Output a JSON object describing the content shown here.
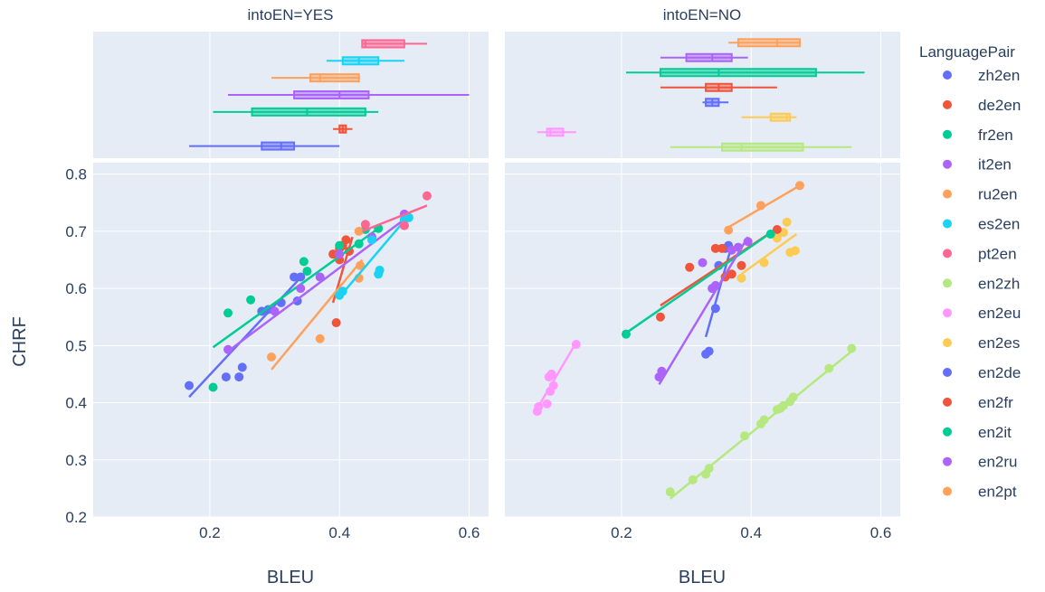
{
  "chart_data": {
    "type": "scatter",
    "facets": [
      "intoEN=YES",
      "intoEN=NO"
    ],
    "xlabel": "BLEU",
    "ylabel": "CHRF",
    "xlim": [
      0.02,
      0.63
    ],
    "ylim": [
      0.2,
      0.82
    ],
    "x_ticks": [
      "0.2",
      "0.4",
      "0.6"
    ],
    "y_ticks": [
      "0.2",
      "0.3",
      "0.4",
      "0.5",
      "0.6",
      "0.7",
      "0.8"
    ],
    "marginal": "box",
    "grid": true,
    "legend_title": "LanguagePair",
    "legend_position": "right",
    "series": [
      {
        "name": "zh2en",
        "color": "#636efa",
        "facet": 0,
        "points": [
          [
            0.168,
            0.43
          ],
          [
            0.225,
            0.445
          ],
          [
            0.245,
            0.445
          ],
          [
            0.25,
            0.462
          ],
          [
            0.28,
            0.56
          ],
          [
            0.29,
            0.563
          ],
          [
            0.31,
            0.575
          ],
          [
            0.33,
            0.62
          ],
          [
            0.335,
            0.578
          ],
          [
            0.34,
            0.62
          ]
        ],
        "trend": [
          [
            0.168,
            0.41
          ],
          [
            0.345,
            0.625
          ]
        ],
        "box": {
          "min": 0.168,
          "q1": 0.28,
          "median": 0.31,
          "q3": 0.33,
          "max": 0.4
        }
      },
      {
        "name": "de2en",
        "color": "#ef553b",
        "facet": 0,
        "points": [
          [
            0.39,
            0.66
          ],
          [
            0.395,
            0.54
          ],
          [
            0.4,
            0.67
          ],
          [
            0.405,
            0.675
          ],
          [
            0.41,
            0.685
          ],
          [
            0.415,
            0.665
          ],
          [
            0.4,
            0.65
          ]
        ],
        "trend": [
          [
            0.39,
            0.575
          ],
          [
            0.42,
            0.69
          ]
        ],
        "box": {
          "min": 0.39,
          "q1": 0.4,
          "median": 0.405,
          "q3": 0.41,
          "max": 0.42
        }
      },
      {
        "name": "fr2en",
        "color": "#00cc96",
        "facet": 0,
        "points": [
          [
            0.205,
            0.427
          ],
          [
            0.228,
            0.557
          ],
          [
            0.263,
            0.58
          ],
          [
            0.345,
            0.647
          ],
          [
            0.35,
            0.63
          ],
          [
            0.4,
            0.675
          ],
          [
            0.43,
            0.678
          ],
          [
            0.44,
            0.703
          ],
          [
            0.46,
            0.705
          ]
        ],
        "trend": [
          [
            0.205,
            0.497
          ],
          [
            0.46,
            0.705
          ]
        ],
        "box": {
          "min": 0.205,
          "q1": 0.265,
          "median": 0.35,
          "q3": 0.44,
          "max": 0.46
        }
      },
      {
        "name": "it2en",
        "color": "#ab63fa",
        "facet": 0,
        "points": [
          [
            0.228,
            0.493
          ],
          [
            0.3,
            0.56
          ],
          [
            0.34,
            0.6
          ],
          [
            0.37,
            0.62
          ],
          [
            0.4,
            0.66
          ],
          [
            0.45,
            0.69
          ],
          [
            0.5,
            0.73
          ],
          [
            0.5,
            0.71
          ]
        ],
        "trend": [
          [
            0.228,
            0.49
          ],
          [
            0.505,
            0.725
          ]
        ],
        "box": {
          "min": 0.228,
          "q1": 0.33,
          "median": 0.4,
          "q3": 0.445,
          "max": 0.6
        }
      },
      {
        "name": "ru2en",
        "color": "#ffa15a",
        "facet": 0,
        "points": [
          [
            0.295,
            0.48
          ],
          [
            0.37,
            0.512
          ],
          [
            0.43,
            0.618
          ],
          [
            0.432,
            0.64
          ],
          [
            0.43,
            0.7
          ]
        ],
        "trend": [
          [
            0.295,
            0.458
          ],
          [
            0.435,
            0.65
          ]
        ],
        "box": {
          "min": 0.295,
          "q1": 0.355,
          "median": 0.37,
          "q3": 0.43,
          "max": 0.432
        }
      },
      {
        "name": "es2en",
        "color": "#19d3f3",
        "facet": 0,
        "points": [
          [
            0.4,
            0.588
          ],
          [
            0.405,
            0.595
          ],
          [
            0.46,
            0.625
          ],
          [
            0.462,
            0.632
          ],
          [
            0.45,
            0.685
          ],
          [
            0.5,
            0.72
          ],
          [
            0.507,
            0.724
          ]
        ],
        "trend": [
          [
            0.4,
            0.585
          ],
          [
            0.505,
            0.725
          ]
        ],
        "box": {
          "min": 0.38,
          "q1": 0.405,
          "median": 0.43,
          "q3": 0.46,
          "max": 0.5
        }
      },
      {
        "name": "pt2en",
        "color": "#ff6692",
        "facet": 0,
        "points": [
          [
            0.44,
            0.712
          ],
          [
            0.5,
            0.71
          ],
          [
            0.535,
            0.762
          ]
        ],
        "trend": [
          [
            0.435,
            0.7
          ],
          [
            0.535,
            0.745
          ]
        ],
        "box": {
          "min": 0.435,
          "q1": 0.435,
          "median": 0.44,
          "q3": 0.5,
          "max": 0.535
        }
      },
      {
        "name": "en2zh",
        "color": "#b6e880",
        "facet": 1,
        "points": [
          [
            0.275,
            0.244
          ],
          [
            0.31,
            0.265
          ],
          [
            0.33,
            0.275
          ],
          [
            0.335,
            0.285
          ],
          [
            0.39,
            0.342
          ],
          [
            0.415,
            0.363
          ],
          [
            0.42,
            0.37
          ],
          [
            0.44,
            0.388
          ],
          [
            0.445,
            0.39
          ],
          [
            0.45,
            0.395
          ],
          [
            0.46,
            0.402
          ],
          [
            0.465,
            0.41
          ],
          [
            0.52,
            0.46
          ],
          [
            0.555,
            0.495
          ]
        ],
        "trend": [
          [
            0.275,
            0.232
          ],
          [
            0.555,
            0.49
          ]
        ],
        "box": {
          "min": 0.275,
          "q1": 0.355,
          "median": 0.385,
          "q3": 0.48,
          "max": 0.555
        }
      },
      {
        "name": "en2eu",
        "color": "#ff97ff",
        "facet": 1,
        "points": [
          [
            0.07,
            0.385
          ],
          [
            0.072,
            0.393
          ],
          [
            0.085,
            0.398
          ],
          [
            0.088,
            0.445
          ],
          [
            0.09,
            0.42
          ],
          [
            0.092,
            0.45
          ],
          [
            0.095,
            0.43
          ],
          [
            0.13,
            0.502
          ]
        ],
        "trend": [
          [
            0.07,
            0.39
          ],
          [
            0.13,
            0.505
          ]
        ],
        "box": {
          "min": 0.07,
          "q1": 0.085,
          "median": 0.09,
          "q3": 0.11,
          "max": 0.13
        }
      },
      {
        "name": "en2es",
        "color": "#fecb52",
        "facet": 1,
        "points": [
          [
            0.385,
            0.618
          ],
          [
            0.42,
            0.645
          ],
          [
            0.44,
            0.688
          ],
          [
            0.45,
            0.698
          ],
          [
            0.455,
            0.716
          ],
          [
            0.46,
            0.663
          ],
          [
            0.468,
            0.666
          ]
        ],
        "trend": [
          [
            0.385,
            0.625
          ],
          [
            0.47,
            0.695
          ]
        ],
        "box": {
          "min": 0.385,
          "q1": 0.43,
          "median": 0.455,
          "q3": 0.46,
          "max": 0.47
        }
      },
      {
        "name": "en2de",
        "color": "#636efa",
        "facet": 1,
        "points": [
          [
            0.33,
            0.485
          ],
          [
            0.335,
            0.49
          ],
          [
            0.345,
            0.565
          ],
          [
            0.35,
            0.64
          ],
          [
            0.36,
            0.67
          ],
          [
            0.365,
            0.675
          ],
          [
            0.34,
            0.6
          ]
        ],
        "trend": [
          [
            0.33,
            0.515
          ],
          [
            0.37,
            0.675
          ]
        ],
        "box": {
          "min": 0.325,
          "q1": 0.33,
          "median": 0.34,
          "q3": 0.35,
          "max": 0.365
        }
      },
      {
        "name": "en2fr",
        "color": "#ef553b",
        "facet": 1,
        "points": [
          [
            0.26,
            0.55
          ],
          [
            0.305,
            0.637
          ],
          [
            0.345,
            0.67
          ],
          [
            0.355,
            0.67
          ],
          [
            0.36,
            0.62
          ],
          [
            0.37,
            0.625
          ],
          [
            0.385,
            0.64
          ],
          [
            0.44,
            0.703
          ]
        ],
        "trend": [
          [
            0.26,
            0.57
          ],
          [
            0.44,
            0.705
          ]
        ],
        "box": {
          "min": 0.26,
          "q1": 0.33,
          "median": 0.35,
          "q3": 0.37,
          "max": 0.44
        }
      },
      {
        "name": "en2it",
        "color": "#00cc96",
        "facet": 1,
        "points": [
          [
            0.207,
            0.52
          ],
          [
            0.43,
            0.695
          ]
        ],
        "trend": [
          [
            0.207,
            0.522
          ],
          [
            0.43,
            0.697
          ]
        ],
        "box": {
          "min": 0.207,
          "q1": 0.26,
          "median": 0.35,
          "q3": 0.5,
          "max": 0.575
        }
      },
      {
        "name": "en2ru",
        "color": "#ab63fa",
        "facet": 1,
        "points": [
          [
            0.258,
            0.445
          ],
          [
            0.262,
            0.455
          ],
          [
            0.325,
            0.645
          ],
          [
            0.34,
            0.6
          ],
          [
            0.345,
            0.605
          ],
          [
            0.37,
            0.667
          ],
          [
            0.38,
            0.672
          ],
          [
            0.395,
            0.682
          ]
        ],
        "trend": [
          [
            0.258,
            0.432
          ],
          [
            0.395,
            0.69
          ]
        ],
        "box": {
          "min": 0.26,
          "q1": 0.3,
          "median": 0.34,
          "q3": 0.37,
          "max": 0.395
        }
      },
      {
        "name": "en2pt",
        "color": "#ffa15a",
        "facet": 1,
        "points": [
          [
            0.365,
            0.702
          ],
          [
            0.415,
            0.745
          ],
          [
            0.475,
            0.78
          ]
        ],
        "trend": [
          [
            0.365,
            0.707
          ],
          [
            0.475,
            0.78
          ]
        ],
        "box": {
          "min": 0.365,
          "q1": 0.38,
          "median": 0.44,
          "q3": 0.475,
          "max": 0.475
        }
      }
    ]
  }
}
